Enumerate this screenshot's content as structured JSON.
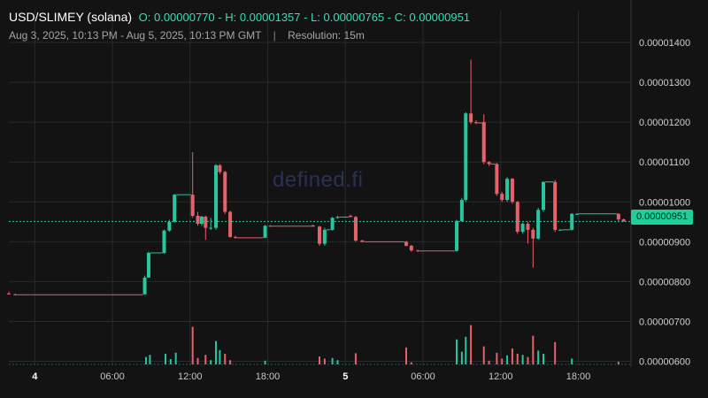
{
  "header": {
    "pair": "USD/SLIMEY (solana)",
    "ohlc": "O: 0.00000770 - H: 0.00001357 - L: 0.00000765 - C: 0.00000951",
    "range": "Aug 3, 2025, 10:13 PM - Aug 5, 2025, 10:13 PM GMT",
    "separator": "|",
    "resolution": "Resolution: 15m"
  },
  "watermark": "defined.fi",
  "last_price_label": "0.00000951",
  "colors": {
    "up": "#26c6a0",
    "down": "#e8616a",
    "grid": "#2a2a2a",
    "background": "#131313"
  },
  "chart_data": {
    "type": "candlestick",
    "title": "USD/SLIMEY (solana)",
    "xlabel": "",
    "ylabel": "",
    "x_tick_labels": [
      "4",
      "06:00",
      "12:00",
      "18:00",
      "5",
      "06:00",
      "12:00",
      "18:00"
    ],
    "x_tick_hours": [
      2,
      8,
      14,
      20,
      26,
      32,
      38,
      44
    ],
    "y_tick_labels": [
      "0.00001400",
      "0.00001300",
      "0.00001200",
      "0.00001100",
      "0.00001000",
      "0.00000900",
      "0.00000800",
      "0.00000700",
      "0.00000600"
    ],
    "y_ticks": [
      1.4e-05,
      1.3e-05,
      1.2e-05,
      1.1e-05,
      1e-05,
      9e-06,
      8e-06,
      7e-06,
      6e-06
    ],
    "ylim": [
      5.9e-06,
      1.48e-05
    ],
    "xlim_hours": [
      0,
      48
    ],
    "last_price": 9.51e-06,
    "grid": true,
    "candles": [
      {
        "t": 0.0,
        "o": 7.7e-06,
        "h": 7.75e-06,
        "l": 7.68e-06,
        "c": 7.68e-06
      },
      {
        "t": 0.5,
        "o": 7.68e-06,
        "h": 7.7e-06,
        "l": 7.66e-06,
        "c": 7.67e-06
      },
      {
        "t": 10.5,
        "o": 7.68e-06,
        "h": 8.15e-06,
        "l": 7.68e-06,
        "c": 8.1e-06
      },
      {
        "t": 10.8,
        "o": 8.1e-06,
        "h": 8.75e-06,
        "l": 8.1e-06,
        "c": 8.72e-06
      },
      {
        "t": 12.0,
        "o": 8.72e-06,
        "h": 9.3e-06,
        "l": 8.7e-06,
        "c": 9.28e-06
      },
      {
        "t": 12.4,
        "o": 9.28e-06,
        "h": 9.55e-06,
        "l": 9.25e-06,
        "c": 9.5e-06
      },
      {
        "t": 12.8,
        "o": 9.5e-06,
        "h": 1.02e-05,
        "l": 9.48e-06,
        "c": 1.018e-05
      },
      {
        "t": 14.2,
        "o": 1.018e-05,
        "h": 1.125e-05,
        "l": 9.6e-06,
        "c": 9.65e-06
      },
      {
        "t": 14.6,
        "o": 9.65e-06,
        "h": 9.75e-06,
        "l": 9.4e-06,
        "c": 9.45e-06
      },
      {
        "t": 14.9,
        "o": 9.45e-06,
        "h": 9.65e-06,
        "l": 9.4e-06,
        "c": 9.63e-06
      },
      {
        "t": 15.2,
        "o": 9.63e-06,
        "h": 9.65e-06,
        "l": 9.05e-06,
        "c": 9.35e-06
      },
      {
        "t": 15.6,
        "o": 9.35e-06,
        "h": 9.6e-06,
        "l": 9.3e-06,
        "c": 9.35e-06
      },
      {
        "t": 16.0,
        "o": 9.35e-06,
        "h": 1.095e-05,
        "l": 9.3e-06,
        "c": 1.092e-05
      },
      {
        "t": 16.3,
        "o": 1.092e-05,
        "h": 1.095e-05,
        "l": 1.07e-05,
        "c": 1.075e-05
      },
      {
        "t": 16.7,
        "o": 1.075e-05,
        "h": 1.078e-05,
        "l": 9.7e-06,
        "c": 9.75e-06
      },
      {
        "t": 17.1,
        "o": 9.75e-06,
        "h": 9.78e-06,
        "l": 9.1e-06,
        "c": 9.12e-06
      },
      {
        "t": 17.5,
        "o": 9.12e-06,
        "h": 9.15e-06,
        "l": 9.08e-06,
        "c": 9.1e-06
      },
      {
        "t": 19.8,
        "o": 9.1e-06,
        "h": 9.42e-06,
        "l": 9.1e-06,
        "c": 9.4e-06
      },
      {
        "t": 20.2,
        "o": 9.4e-06,
        "h": 9.42e-06,
        "l": 9.38e-06,
        "c": 9.39e-06
      },
      {
        "t": 23.5,
        "o": 9.41e-06,
        "h": 9.43e-06,
        "l": 9.38e-06,
        "c": 9.38e-06
      },
      {
        "t": 24.0,
        "o": 9.38e-06,
        "h": 9.4e-06,
        "l": 8.9e-06,
        "c": 8.95e-06
      },
      {
        "t": 24.4,
        "o": 8.95e-06,
        "h": 9.35e-06,
        "l": 8.9e-06,
        "c": 9.3e-06
      },
      {
        "t": 25.0,
        "o": 9.3e-06,
        "h": 9.62e-06,
        "l": 9.28e-06,
        "c": 9.6e-06
      },
      {
        "t": 25.4,
        "o": 9.6e-06,
        "h": 9.65e-06,
        "l": 9.58e-06,
        "c": 9.62e-06
      },
      {
        "t": 26.4,
        "o": 9.65e-06,
        "h": 9.68e-06,
        "l": 9.62e-06,
        "c": 9.62e-06
      },
      {
        "t": 26.8,
        "o": 9.62e-06,
        "h": 9.65e-06,
        "l": 9e-06,
        "c": 9.03e-06
      },
      {
        "t": 27.3,
        "o": 9.03e-06,
        "h": 9.05e-06,
        "l": 8.98e-06,
        "c": 9e-06
      },
      {
        "t": 30.7,
        "o": 9e-06,
        "h": 9.02e-06,
        "l": 8.88e-06,
        "c": 8.9e-06
      },
      {
        "t": 31.1,
        "o": 8.9e-06,
        "h": 8.92e-06,
        "l": 8.75e-06,
        "c": 8.78e-06
      },
      {
        "t": 31.6,
        "o": 8.78e-06,
        "h": 8.8e-06,
        "l": 8.75e-06,
        "c": 8.77e-06
      },
      {
        "t": 34.6,
        "o": 8.77e-06,
        "h": 9.55e-06,
        "l": 8.75e-06,
        "c": 9.52e-06
      },
      {
        "t": 35.0,
        "o": 9.52e-06,
        "h": 1.01e-05,
        "l": 9.5e-06,
        "c": 1.005e-05
      },
      {
        "t": 35.3,
        "o": 1.005e-05,
        "h": 1.225e-05,
        "l": 1e-05,
        "c": 1.222e-05
      },
      {
        "t": 35.7,
        "o": 1.222e-05,
        "h": 1.357e-05,
        "l": 1.195e-05,
        "c": 1.2e-05
      },
      {
        "t": 36.1,
        "o": 1.2e-05,
        "h": 1.205e-05,
        "l": 1.195e-05,
        "c": 1.198e-05
      },
      {
        "t": 36.7,
        "o": 1.2e-05,
        "h": 1.22e-05,
        "l": 1.095e-05,
        "c": 1.1e-05
      },
      {
        "t": 37.1,
        "o": 1.1e-05,
        "h": 1.102e-05,
        "l": 1.09e-05,
        "c": 1.095e-05
      },
      {
        "t": 37.7,
        "o": 1.095e-05,
        "h": 1.098e-05,
        "l": 1.015e-05,
        "c": 1.02e-05
      },
      {
        "t": 38.1,
        "o": 1.02e-05,
        "h": 1.025e-05,
        "l": 1e-05,
        "c": 1.005e-05
      },
      {
        "t": 38.5,
        "o": 1.005e-05,
        "h": 1.062e-05,
        "l": 1e-05,
        "c": 1.058e-05
      },
      {
        "t": 38.9,
        "o": 1.058e-05,
        "h": 1.06e-05,
        "l": 9.95e-06,
        "c": 1e-05
      },
      {
        "t": 39.3,
        "o": 1e-05,
        "h": 1.002e-05,
        "l": 9.2e-06,
        "c": 9.25e-06
      },
      {
        "t": 39.7,
        "o": 9.25e-06,
        "h": 9.48e-06,
        "l": 9.2e-06,
        "c": 9.45e-06
      },
      {
        "t": 40.1,
        "o": 9.45e-06,
        "h": 9.5e-06,
        "l": 8.95e-06,
        "c": 9.3e-06
      },
      {
        "t": 40.5,
        "o": 9.3e-06,
        "h": 9.35e-06,
        "l": 8.35e-06,
        "c": 9.08e-06
      },
      {
        "t": 40.9,
        "o": 9.08e-06,
        "h": 9.85e-06,
        "l": 9.05e-06,
        "c": 9.8e-06
      },
      {
        "t": 41.3,
        "o": 9.8e-06,
        "h": 1.052e-05,
        "l": 9.75e-06,
        "c": 1.05e-05
      },
      {
        "t": 42.2,
        "o": 1.05e-05,
        "h": 1.055e-05,
        "l": 9.25e-06,
        "c": 9.3e-06
      },
      {
        "t": 42.6,
        "o": 9.3e-06,
        "h": 9.32e-06,
        "l": 9.28e-06,
        "c": 9.3e-06
      },
      {
        "t": 43.5,
        "o": 9.3e-06,
        "h": 9.72e-06,
        "l": 9.28e-06,
        "c": 9.7e-06
      },
      {
        "t": 43.9,
        "o": 9.7e-06,
        "h": 9.72e-06,
        "l": 9.68e-06,
        "c": 9.7e-06
      },
      {
        "t": 47.1,
        "o": 9.7e-06,
        "h": 9.72e-06,
        "l": 9.5e-06,
        "c": 9.56e-06
      },
      {
        "t": 47.5,
        "o": 9.56e-06,
        "h": 9.58e-06,
        "l": 9.5e-06,
        "c": 9.51e-06
      }
    ],
    "volume_bars": [
      {
        "t": 10.6,
        "v": 0.14,
        "dir": "up"
      },
      {
        "t": 10.9,
        "v": 0.18,
        "dir": "up"
      },
      {
        "t": 12.1,
        "v": 0.2,
        "dir": "up"
      },
      {
        "t": 12.5,
        "v": 0.1,
        "dir": "up"
      },
      {
        "t": 12.9,
        "v": 0.22,
        "dir": "up"
      },
      {
        "t": 14.2,
        "v": 0.71,
        "dir": "down"
      },
      {
        "t": 14.6,
        "v": 0.12,
        "dir": "down"
      },
      {
        "t": 15.2,
        "v": 0.18,
        "dir": "down"
      },
      {
        "t": 15.6,
        "v": 0.08,
        "dir": "up"
      },
      {
        "t": 16.0,
        "v": 0.44,
        "dir": "up"
      },
      {
        "t": 16.3,
        "v": 0.27,
        "dir": "up"
      },
      {
        "t": 16.7,
        "v": 0.2,
        "dir": "down"
      },
      {
        "t": 17.1,
        "v": 0.08,
        "dir": "down"
      },
      {
        "t": 19.8,
        "v": 0.07,
        "dir": "up"
      },
      {
        "t": 24.0,
        "v": 0.15,
        "dir": "down"
      },
      {
        "t": 24.4,
        "v": 0.11,
        "dir": "down"
      },
      {
        "t": 25.0,
        "v": 0.12,
        "dir": "up"
      },
      {
        "t": 25.4,
        "v": 0.08,
        "dir": "up"
      },
      {
        "t": 26.8,
        "v": 0.21,
        "dir": "down"
      },
      {
        "t": 30.7,
        "v": 0.32,
        "dir": "down"
      },
      {
        "t": 31.1,
        "v": 0.04,
        "dir": "down"
      },
      {
        "t": 34.6,
        "v": 0.47,
        "dir": "up"
      },
      {
        "t": 35.0,
        "v": 0.24,
        "dir": "up"
      },
      {
        "t": 35.3,
        "v": 0.52,
        "dir": "up"
      },
      {
        "t": 35.7,
        "v": 0.74,
        "dir": "down"
      },
      {
        "t": 36.7,
        "v": 0.34,
        "dir": "down"
      },
      {
        "t": 37.1,
        "v": 0.07,
        "dir": "down"
      },
      {
        "t": 37.7,
        "v": 0.22,
        "dir": "down"
      },
      {
        "t": 38.1,
        "v": 0.11,
        "dir": "down"
      },
      {
        "t": 38.5,
        "v": 0.17,
        "dir": "up"
      },
      {
        "t": 38.9,
        "v": 0.3,
        "dir": "down"
      },
      {
        "t": 39.3,
        "v": 0.2,
        "dir": "down"
      },
      {
        "t": 39.7,
        "v": 0.18,
        "dir": "up"
      },
      {
        "t": 40.1,
        "v": 0.14,
        "dir": "down"
      },
      {
        "t": 40.5,
        "v": 0.54,
        "dir": "down"
      },
      {
        "t": 40.9,
        "v": 0.26,
        "dir": "up"
      },
      {
        "t": 41.3,
        "v": 0.2,
        "dir": "up"
      },
      {
        "t": 42.2,
        "v": 0.42,
        "dir": "down"
      },
      {
        "t": 43.5,
        "v": 0.11,
        "dir": "up"
      },
      {
        "t": 47.1,
        "v": 0.05,
        "dir": "down"
      }
    ]
  }
}
